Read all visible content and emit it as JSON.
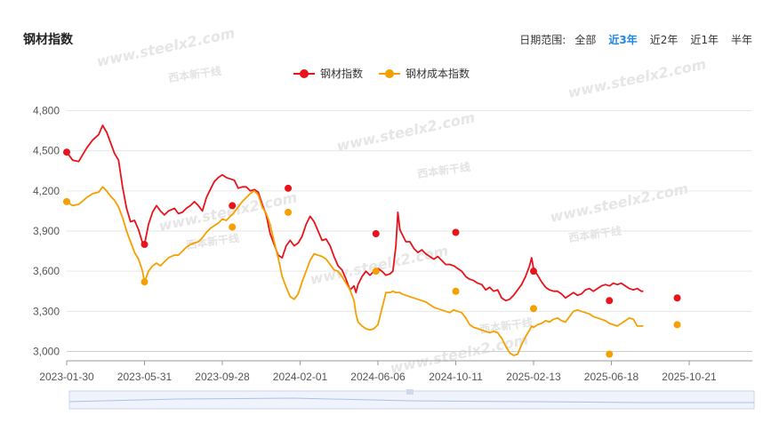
{
  "header": {
    "title": "钢材指数",
    "range_label": "日期范围:",
    "range_options": [
      "全部",
      "近3年",
      "近2年",
      "近1年",
      "半年"
    ],
    "active_range": "近3年"
  },
  "watermark": {
    "text": "www.steelx2.com",
    "logo_text": "西本新干线"
  },
  "colors": {
    "steel": "#e8131b",
    "cost": "#f5a000",
    "grid": "#e6e6e6",
    "accent": "#1e88e5"
  },
  "chart_data": {
    "type": "line",
    "x_labels": [
      "2023-01-30",
      "2023-05-31",
      "2023-09-28",
      "2024-02-01",
      "2024-06-06",
      "2024-10-11",
      "2025-02-13",
      "2025-06-18",
      "2025-10-21"
    ],
    "y_ticks": [
      "4,800",
      "4,500",
      "4,200",
      "3,900",
      "3,600",
      "3,300",
      "3,000"
    ],
    "ylim": [
      2950,
      4850
    ],
    "legend_position": "top-center",
    "grid": true,
    "series": [
      {
        "name": "钢材指数",
        "color": "#e8131b",
        "points": [
          [
            0,
            4490
          ],
          [
            0.3,
            4430
          ],
          [
            0.6,
            4420
          ],
          [
            1,
            4520
          ],
          [
            1.3,
            4580
          ],
          [
            1.6,
            4620
          ],
          [
            1.8,
            4690
          ],
          [
            2,
            4640
          ],
          [
            2.2,
            4560
          ],
          [
            2.4,
            4480
          ],
          [
            2.6,
            4430
          ],
          [
            2.8,
            4230
          ],
          [
            3,
            4070
          ],
          [
            3.2,
            3970
          ],
          [
            3.4,
            3980
          ],
          [
            3.6,
            3910
          ],
          [
            3.8,
            3810
          ],
          [
            3.9,
            3800
          ],
          [
            4.1,
            3950
          ],
          [
            4.3,
            4040
          ],
          [
            4.5,
            4090
          ],
          [
            4.7,
            4050
          ],
          [
            4.9,
            4020
          ],
          [
            5.1,
            4050
          ],
          [
            5.4,
            4070
          ],
          [
            5.6,
            4030
          ],
          [
            5.8,
            4040
          ],
          [
            6,
            4070
          ],
          [
            6.2,
            4090
          ],
          [
            6.4,
            4120
          ],
          [
            6.6,
            4090
          ],
          [
            6.8,
            4050
          ],
          [
            7,
            4150
          ],
          [
            7.2,
            4210
          ],
          [
            7.4,
            4270
          ],
          [
            7.6,
            4300
          ],
          [
            7.8,
            4320
          ],
          [
            8,
            4300
          ],
          [
            8.2,
            4290
          ],
          [
            8.4,
            4280
          ],
          [
            8.6,
            4220
          ],
          [
            8.8,
            4230
          ],
          [
            9,
            4230
          ],
          [
            9.2,
            4200
          ],
          [
            9.4,
            4210
          ],
          [
            9.6,
            4190
          ],
          [
            9.8,
            4100
          ],
          [
            10,
            4020
          ],
          [
            10.2,
            3880
          ],
          [
            10.4,
            3800
          ],
          [
            10.6,
            3720
          ],
          [
            10.8,
            3700
          ],
          [
            11,
            3790
          ],
          [
            11.2,
            3830
          ],
          [
            11.4,
            3790
          ],
          [
            11.6,
            3810
          ],
          [
            11.8,
            3860
          ],
          [
            12,
            3950
          ],
          [
            12.2,
            4010
          ],
          [
            12.4,
            3970
          ],
          [
            12.6,
            3900
          ],
          [
            12.8,
            3830
          ],
          [
            13,
            3840
          ],
          [
            13.2,
            3790
          ],
          [
            13.4,
            3710
          ],
          [
            13.6,
            3640
          ],
          [
            13.8,
            3610
          ],
          [
            14,
            3540
          ],
          [
            14.2,
            3460
          ],
          [
            14.4,
            3490
          ],
          [
            14.5,
            3440
          ],
          [
            14.6,
            3500
          ],
          [
            14.8,
            3560
          ],
          [
            15,
            3600
          ],
          [
            15.2,
            3570
          ],
          [
            15.4,
            3600
          ],
          [
            15.6,
            3620
          ],
          [
            15.8,
            3600
          ],
          [
            16,
            3570
          ],
          [
            16.2,
            3580
          ],
          [
            16.35,
            3600
          ],
          [
            16.5,
            3790
          ],
          [
            16.6,
            4040
          ],
          [
            16.7,
            3910
          ],
          [
            16.8,
            3880
          ],
          [
            17,
            3820
          ],
          [
            17.2,
            3820
          ],
          [
            17.4,
            3770
          ],
          [
            17.6,
            3740
          ],
          [
            17.8,
            3760
          ],
          [
            18,
            3730
          ],
          [
            18.2,
            3710
          ],
          [
            18.4,
            3690
          ],
          [
            18.6,
            3710
          ],
          [
            18.8,
            3680
          ],
          [
            19,
            3650
          ],
          [
            19.2,
            3650
          ],
          [
            19.4,
            3640
          ],
          [
            19.6,
            3620
          ],
          [
            19.8,
            3600
          ],
          [
            20,
            3560
          ],
          [
            20.2,
            3540
          ],
          [
            20.4,
            3530
          ],
          [
            20.6,
            3510
          ],
          [
            20.8,
            3500
          ],
          [
            21,
            3460
          ],
          [
            21.2,
            3480
          ],
          [
            21.4,
            3450
          ],
          [
            21.6,
            3460
          ],
          [
            21.8,
            3400
          ],
          [
            22,
            3380
          ],
          [
            22.2,
            3390
          ],
          [
            22.4,
            3420
          ],
          [
            22.6,
            3460
          ],
          [
            22.8,
            3500
          ],
          [
            23,
            3560
          ],
          [
            23.2,
            3640
          ],
          [
            23.3,
            3700
          ],
          [
            23.4,
            3620
          ],
          [
            23.6,
            3570
          ],
          [
            23.8,
            3520
          ],
          [
            24,
            3480
          ],
          [
            24.2,
            3460
          ],
          [
            24.4,
            3450
          ],
          [
            24.6,
            3450
          ],
          [
            24.8,
            3430
          ],
          [
            25,
            3400
          ],
          [
            25.2,
            3420
          ],
          [
            25.4,
            3440
          ],
          [
            25.6,
            3420
          ],
          [
            25.8,
            3430
          ],
          [
            26,
            3460
          ],
          [
            26.2,
            3470
          ],
          [
            26.4,
            3450
          ],
          [
            26.6,
            3470
          ],
          [
            26.8,
            3490
          ],
          [
            27,
            3500
          ],
          [
            27.2,
            3490
          ],
          [
            27.4,
            3510
          ],
          [
            27.6,
            3500
          ],
          [
            27.8,
            3510
          ],
          [
            28,
            3490
          ],
          [
            28.2,
            3470
          ],
          [
            28.4,
            3460
          ],
          [
            28.6,
            3470
          ],
          [
            28.8,
            3450
          ],
          [
            28.9,
            3450
          ]
        ],
        "markers": [
          [
            0,
            4490
          ],
          [
            3.9,
            3800
          ],
          [
            8.3,
            4090
          ],
          [
            11.1,
            4220
          ],
          [
            15.5,
            3880
          ],
          [
            19.5,
            3890
          ],
          [
            23.4,
            3600
          ],
          [
            27.2,
            3380
          ],
          [
            30.6,
            3400
          ]
        ]
      },
      {
        "name": "钢材成本指数",
        "color": "#f5a000",
        "points": [
          [
            0,
            4120
          ],
          [
            0.3,
            4090
          ],
          [
            0.6,
            4100
          ],
          [
            1,
            4150
          ],
          [
            1.3,
            4180
          ],
          [
            1.6,
            4190
          ],
          [
            1.8,
            4230
          ],
          [
            2,
            4200
          ],
          [
            2.2,
            4160
          ],
          [
            2.4,
            4130
          ],
          [
            2.6,
            4080
          ],
          [
            2.8,
            4000
          ],
          [
            3,
            3900
          ],
          [
            3.2,
            3820
          ],
          [
            3.4,
            3740
          ],
          [
            3.6,
            3690
          ],
          [
            3.8,
            3600
          ],
          [
            3.9,
            3520
          ],
          [
            4.1,
            3600
          ],
          [
            4.3,
            3640
          ],
          [
            4.5,
            3660
          ],
          [
            4.7,
            3640
          ],
          [
            4.9,
            3670
          ],
          [
            5.1,
            3700
          ],
          [
            5.4,
            3720
          ],
          [
            5.6,
            3720
          ],
          [
            5.8,
            3750
          ],
          [
            6,
            3780
          ],
          [
            6.2,
            3800
          ],
          [
            6.4,
            3810
          ],
          [
            6.6,
            3820
          ],
          [
            6.8,
            3850
          ],
          [
            7,
            3890
          ],
          [
            7.2,
            3920
          ],
          [
            7.4,
            3940
          ],
          [
            7.6,
            3960
          ],
          [
            7.8,
            3990
          ],
          [
            8,
            3980
          ],
          [
            8.2,
            4010
          ],
          [
            8.4,
            4040
          ],
          [
            8.6,
            4080
          ],
          [
            8.8,
            4120
          ],
          [
            9,
            4150
          ],
          [
            9.2,
            4180
          ],
          [
            9.4,
            4200
          ],
          [
            9.6,
            4170
          ],
          [
            9.8,
            4080
          ],
          [
            10,
            4030
          ],
          [
            10.2,
            3950
          ],
          [
            10.4,
            3820
          ],
          [
            10.6,
            3700
          ],
          [
            10.8,
            3560
          ],
          [
            11,
            3480
          ],
          [
            11.2,
            3410
          ],
          [
            11.4,
            3390
          ],
          [
            11.6,
            3430
          ],
          [
            11.8,
            3520
          ],
          [
            12,
            3600
          ],
          [
            12.2,
            3680
          ],
          [
            12.4,
            3730
          ],
          [
            12.6,
            3720
          ],
          [
            12.8,
            3710
          ],
          [
            13,
            3690
          ],
          [
            13.2,
            3650
          ],
          [
            13.4,
            3610
          ],
          [
            13.6,
            3600
          ],
          [
            13.8,
            3560
          ],
          [
            14,
            3510
          ],
          [
            14.2,
            3460
          ],
          [
            14.4,
            3380
          ],
          [
            14.5,
            3280
          ],
          [
            14.6,
            3220
          ],
          [
            14.8,
            3190
          ],
          [
            15,
            3170
          ],
          [
            15.2,
            3160
          ],
          [
            15.4,
            3170
          ],
          [
            15.6,
            3200
          ],
          [
            15.8,
            3320
          ],
          [
            16,
            3440
          ],
          [
            16.2,
            3440
          ],
          [
            16.35,
            3450
          ],
          [
            16.5,
            3440
          ],
          [
            16.6,
            3440
          ],
          [
            16.7,
            3440
          ],
          [
            16.8,
            3430
          ],
          [
            17,
            3420
          ],
          [
            17.2,
            3410
          ],
          [
            17.4,
            3400
          ],
          [
            17.6,
            3390
          ],
          [
            17.8,
            3380
          ],
          [
            18,
            3370
          ],
          [
            18.2,
            3350
          ],
          [
            18.4,
            3330
          ],
          [
            18.6,
            3320
          ],
          [
            18.8,
            3310
          ],
          [
            19,
            3300
          ],
          [
            19.2,
            3290
          ],
          [
            19.4,
            3310
          ],
          [
            19.6,
            3300
          ],
          [
            19.8,
            3290
          ],
          [
            20,
            3250
          ],
          [
            20.2,
            3200
          ],
          [
            20.4,
            3180
          ],
          [
            20.6,
            3170
          ],
          [
            20.8,
            3160
          ],
          [
            21,
            3150
          ],
          [
            21.2,
            3140
          ],
          [
            21.4,
            3150
          ],
          [
            21.6,
            3140
          ],
          [
            21.8,
            3100
          ],
          [
            22,
            3040
          ],
          [
            22.2,
            2990
          ],
          [
            22.4,
            2970
          ],
          [
            22.6,
            2980
          ],
          [
            22.8,
            3050
          ],
          [
            23,
            3110
          ],
          [
            23.2,
            3160
          ],
          [
            23.3,
            3190
          ],
          [
            23.4,
            3180
          ],
          [
            23.6,
            3200
          ],
          [
            23.8,
            3210
          ],
          [
            24,
            3230
          ],
          [
            24.2,
            3220
          ],
          [
            24.4,
            3240
          ],
          [
            24.6,
            3250
          ],
          [
            24.8,
            3230
          ],
          [
            25,
            3220
          ],
          [
            25.2,
            3260
          ],
          [
            25.4,
            3300
          ],
          [
            25.6,
            3310
          ],
          [
            25.8,
            3300
          ],
          [
            26,
            3290
          ],
          [
            26.2,
            3280
          ],
          [
            26.4,
            3260
          ],
          [
            26.6,
            3250
          ],
          [
            26.8,
            3240
          ],
          [
            27,
            3230
          ],
          [
            27.2,
            3210
          ],
          [
            27.4,
            3200
          ],
          [
            27.6,
            3190
          ],
          [
            27.8,
            3210
          ],
          [
            28,
            3230
          ],
          [
            28.2,
            3250
          ],
          [
            28.4,
            3240
          ],
          [
            28.6,
            3190
          ],
          [
            28.8,
            3190
          ],
          [
            28.9,
            3190
          ]
        ],
        "markers": [
          [
            0,
            4120
          ],
          [
            3.9,
            3520
          ],
          [
            8.3,
            3930
          ],
          [
            11.1,
            4040
          ],
          [
            15.5,
            3600
          ],
          [
            19.5,
            3450
          ],
          [
            23.4,
            3320
          ],
          [
            27.2,
            2980
          ],
          [
            30.6,
            3200
          ]
        ]
      }
    ]
  }
}
